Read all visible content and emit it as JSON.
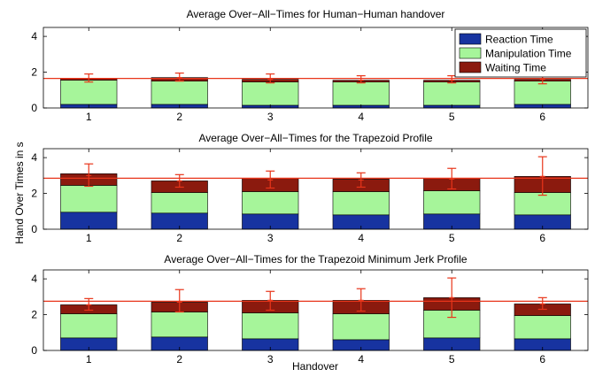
{
  "figure": {
    "ylabel": "Hand Over Times in s",
    "xlabel": "Handover"
  },
  "legend": {
    "items": [
      {
        "label": "Reaction Time",
        "color": "#1733a0"
      },
      {
        "label": "Manipulation Time",
        "color": "#a6f59a"
      },
      {
        "label": "Waiting Time",
        "color": "#8b1a0e"
      }
    ],
    "placement": "top-right of first panel"
  },
  "colors": {
    "reaction": "#1733a0",
    "manipulation": "#a6f59a",
    "waiting": "#8b1a0e",
    "errorbar": "#e8351a",
    "reference_line": "#e8351a"
  },
  "chart_data": [
    {
      "type": "bar",
      "stacked": true,
      "title": "Average Over−All−Times for Human−Human handover",
      "categories": [
        "1",
        "2",
        "3",
        "4",
        "5",
        "6"
      ],
      "ylim": [
        0,
        4.5
      ],
      "yticks": [
        "0",
        "2",
        "4"
      ],
      "series": [
        {
          "name": "Reaction Time",
          "values": [
            0.2,
            0.2,
            0.15,
            0.15,
            0.15,
            0.2
          ]
        },
        {
          "name": "Manipulation Time",
          "values": [
            1.35,
            1.3,
            1.3,
            1.3,
            1.3,
            1.3
          ]
        },
        {
          "name": "Waiting Time",
          "values": [
            0.1,
            0.2,
            0.15,
            0.1,
            0.1,
            0.1
          ]
        }
      ],
      "error_bars": [
        {
          "center": 1.65,
          "low": 1.45,
          "high": 1.9
        },
        {
          "center": 1.7,
          "low": 1.5,
          "high": 1.95
        },
        {
          "center": 1.6,
          "low": 1.4,
          "high": 1.9
        },
        {
          "center": 1.55,
          "low": 1.4,
          "high": 1.8
        },
        {
          "center": 1.55,
          "low": 1.4,
          "high": 1.8
        },
        {
          "center": 1.6,
          "low": 1.35,
          "high": 1.85
        }
      ],
      "reference_line": 1.65
    },
    {
      "type": "bar",
      "stacked": true,
      "title": "Average Over−All−Times for the Trapezoid Profile",
      "categories": [
        "1",
        "2",
        "3",
        "4",
        "5",
        "6"
      ],
      "ylim": [
        0,
        4.5
      ],
      "yticks": [
        "0",
        "2",
        "4"
      ],
      "series": [
        {
          "name": "Reaction Time",
          "values": [
            0.95,
            0.9,
            0.85,
            0.8,
            0.85,
            0.8
          ]
        },
        {
          "name": "Manipulation Time",
          "values": [
            1.5,
            1.15,
            1.25,
            1.3,
            1.3,
            1.25
          ]
        },
        {
          "name": "Waiting Time",
          "values": [
            0.65,
            0.65,
            0.75,
            0.7,
            0.7,
            0.9
          ]
        }
      ],
      "error_bars": [
        {
          "center": 3.0,
          "low": 2.4,
          "high": 3.65
        },
        {
          "center": 2.7,
          "low": 2.35,
          "high": 3.05
        },
        {
          "center": 2.75,
          "low": 2.3,
          "high": 3.25
        },
        {
          "center": 2.75,
          "low": 2.35,
          "high": 3.15
        },
        {
          "center": 2.8,
          "low": 2.25,
          "high": 3.4
        },
        {
          "center": 2.95,
          "low": 1.9,
          "high": 4.05
        }
      ],
      "reference_line": 2.85
    },
    {
      "type": "bar",
      "stacked": true,
      "title": "Average Over−All−Times for the Trapezoid Minimum Jerk Profile",
      "categories": [
        "1",
        "2",
        "3",
        "4",
        "5",
        "6"
      ],
      "ylim": [
        0,
        4.5
      ],
      "yticks": [
        "0",
        "2",
        "4"
      ],
      "xlabel": "Handover",
      "series": [
        {
          "name": "Reaction Time",
          "values": [
            0.7,
            0.75,
            0.65,
            0.6,
            0.7,
            0.65
          ]
        },
        {
          "name": "Manipulation Time",
          "values": [
            1.35,
            1.4,
            1.45,
            1.45,
            1.55,
            1.3
          ]
        },
        {
          "name": "Waiting Time",
          "values": [
            0.5,
            0.55,
            0.7,
            0.75,
            0.7,
            0.65
          ]
        }
      ],
      "error_bars": [
        {
          "center": 2.55,
          "low": 2.25,
          "high": 2.9
        },
        {
          "center": 2.7,
          "low": 2.15,
          "high": 3.4
        },
        {
          "center": 2.8,
          "low": 2.25,
          "high": 3.3
        },
        {
          "center": 2.8,
          "low": 2.2,
          "high": 3.45
        },
        {
          "center": 2.95,
          "low": 1.85,
          "high": 4.05
        },
        {
          "center": 2.6,
          "low": 2.3,
          "high": 2.95
        }
      ],
      "reference_line": 2.75
    }
  ]
}
